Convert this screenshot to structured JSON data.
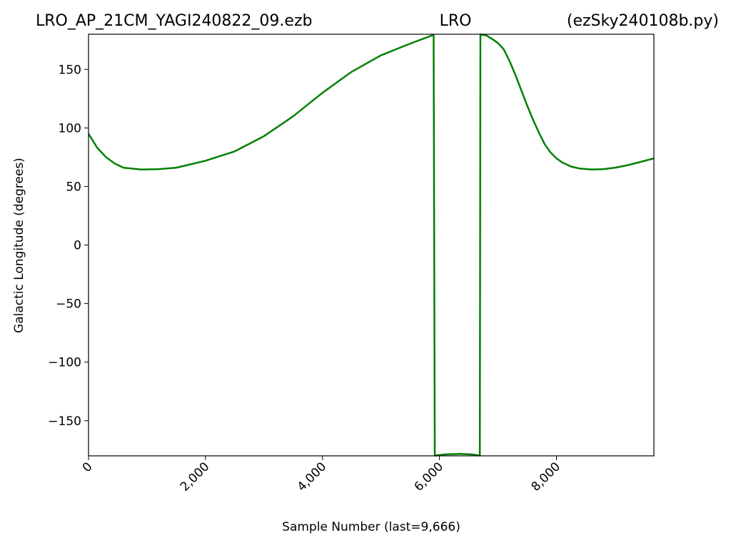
{
  "chart_data": {
    "type": "line",
    "title_left": "LRO_AP_21CM_YAGI240822_09.ezb",
    "title_center": "LRO",
    "title_right": "(ezSky240108b.py)",
    "xlabel": "Sample Number (last=9,666)",
    "ylabel": "Galactic Longitude (degrees)",
    "color": "#008000",
    "x": [
      0,
      150,
      300,
      450,
      600,
      900,
      1200,
      1500,
      2000,
      2500,
      3000,
      3500,
      4000,
      4500,
      5000,
      5500,
      5900,
      5920,
      6100,
      6350,
      6550,
      6690,
      6700,
      6800,
      6900,
      7000,
      7100,
      7200,
      7300,
      7400,
      7500,
      7600,
      7700,
      7800,
      7900,
      8000,
      8100,
      8250,
      8400,
      8600,
      8800,
      9000,
      9200,
      9400,
      9666
    ],
    "values": [
      95,
      83,
      75,
      69.5,
      66,
      64.5,
      64.8,
      66,
      72,
      80,
      93,
      110,
      130,
      148,
      162,
      172,
      179.5,
      -179.8,
      -178.8,
      -178.3,
      -178.8,
      -179.8,
      179.8,
      179,
      176,
      172.5,
      167,
      157,
      145,
      132,
      119,
      107,
      96,
      86,
      79,
      74,
      70.5,
      67,
      65.3,
      64.5,
      64.8,
      66,
      68,
      70.5,
      74
    ],
    "xlim": [
      0,
      9666
    ],
    "ylim": [
      -180,
      180
    ],
    "xticks": [
      0,
      {
        "value": 2000,
        "label": "2,000"
      },
      {
        "value": 4000,
        "label": "4,000"
      },
      {
        "value": 6000,
        "label": "6,000"
      },
      {
        "value": 8000,
        "label": "8,000"
      }
    ],
    "yticks": [
      {
        "value": -150,
        "label": "−150"
      },
      {
        "value": -100,
        "label": "−100"
      },
      {
        "value": -50,
        "label": "−50"
      },
      0,
      50,
      100,
      150
    ],
    "grid": false
  }
}
